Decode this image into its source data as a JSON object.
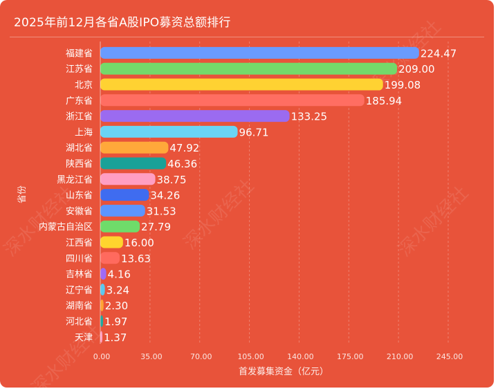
{
  "chart_data": {
    "type": "bar",
    "orientation": "horizontal",
    "title": "2025年前12月各省A股IPO募资总额排行",
    "xlabel": "首发募集资金（亿元）",
    "ylabel": "省份",
    "xlim": [
      0,
      245
    ],
    "xticks": [
      "0.00",
      "35.00",
      "70.00",
      "105.00",
      "140.00",
      "175.00",
      "210.00",
      "245.00"
    ],
    "grid": "vertical",
    "categories": [
      "福建省",
      "江苏省",
      "北京",
      "广东省",
      "浙江省",
      "上海",
      "湖北省",
      "陕西省",
      "黑龙江省",
      "山东省",
      "安徽省",
      "内蒙古自治区",
      "江西省",
      "四川省",
      "吉林省",
      "辽宁省",
      "湖南省",
      "河北省",
      "天津"
    ],
    "values": [
      224.47,
      209.0,
      199.08,
      185.94,
      133.25,
      96.71,
      47.92,
      46.36,
      38.75,
      34.26,
      31.53,
      27.79,
      16.0,
      13.63,
      4.16,
      3.24,
      2.3,
      1.97,
      1.37
    ],
    "value_labels": [
      "224.47",
      "209.00",
      "199.08",
      "185.94",
      "133.25",
      "96.71",
      "47.92",
      "46.36",
      "38.75",
      "34.26",
      "31.53",
      "27.79",
      "16.00",
      "13.63",
      "4.16",
      "3.24",
      "2.30",
      "1.97",
      "1.37"
    ],
    "colors": [
      "#6a9bff",
      "#74d96a",
      "#ffd232",
      "#ff6e62",
      "#9b6bf0",
      "#6ad4f5",
      "#ffa83a",
      "#1aa198",
      "#ff9ec2",
      "#3f6cf0",
      "#5c95ff",
      "#6fdc6a",
      "#ffd42e",
      "#ff6a5e",
      "#a06bf5",
      "#5cc8ee",
      "#ffa333",
      "#22a79e",
      "#ffa0c4"
    ],
    "panel_color": "#e8533a"
  },
  "watermark": "深水财经社"
}
